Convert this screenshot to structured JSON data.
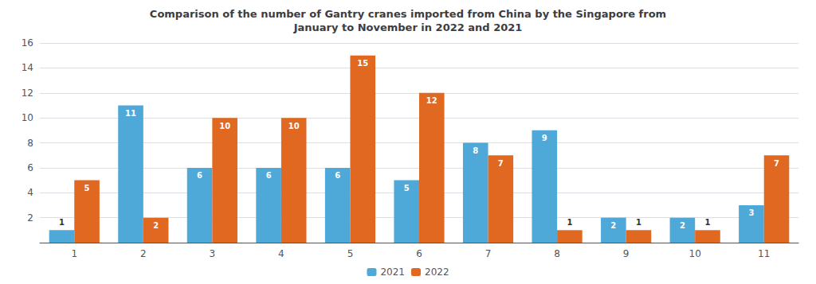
{
  "chart_data": {
    "type": "bar",
    "title": "Comparison of the number of Gantry cranes imported from China by the Singapore from\nJanuary to November in 2022 and 2021",
    "categories": [
      "1",
      "2",
      "3",
      "4",
      "5",
      "6",
      "7",
      "8",
      "9",
      "10",
      "11"
    ],
    "series": [
      {
        "name": "2021",
        "color": "#4ea8d8",
        "values": [
          1,
          11,
          6,
          6,
          6,
          5,
          8,
          9,
          2,
          2,
          3
        ]
      },
      {
        "name": "2022",
        "color": "#e06820",
        "values": [
          5,
          2,
          10,
          10,
          15,
          12,
          7,
          1,
          1,
          1,
          7
        ]
      }
    ],
    "ylim": [
      0,
      16
    ],
    "yticks": [
      {
        "value": 0,
        "label": null
      },
      2,
      4,
      6,
      8,
      10,
      12,
      14,
      16
    ],
    "grid": true,
    "legend": "bottom",
    "data_labels": true
  }
}
